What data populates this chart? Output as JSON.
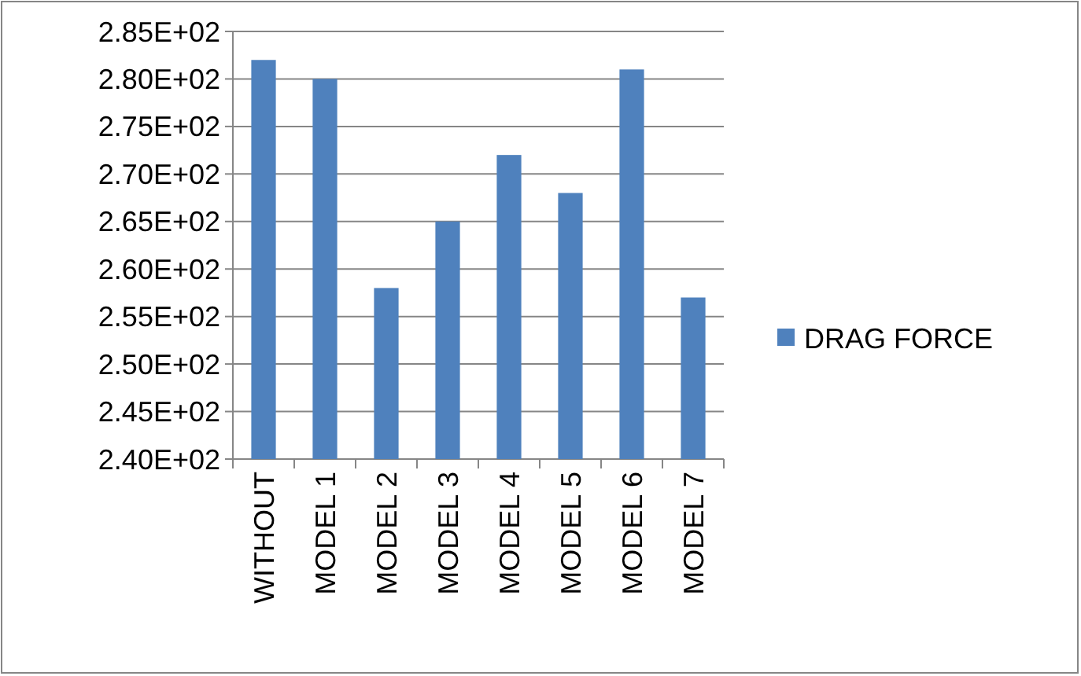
{
  "chart_data": {
    "type": "bar",
    "categories": [
      "WITHOUT",
      "MODEL 1",
      "MODEL 2",
      "MODEL 3",
      "MODEL 4",
      "MODEL 5",
      "MODEL 6",
      "MODEL 7"
    ],
    "series": [
      {
        "name": "DRAG FORCE",
        "color": "#4f81bd",
        "values": [
          282,
          280,
          258,
          265,
          272,
          268,
          281,
          257
        ]
      }
    ],
    "ylim": [
      240,
      285
    ],
    "yticks": [
      {
        "value": 240,
        "label": "2.40E+02"
      },
      {
        "value": 245,
        "label": "2.45E+02"
      },
      {
        "value": 250,
        "label": "2.50E+02"
      },
      {
        "value": 255,
        "label": "2.55E+02"
      },
      {
        "value": 260,
        "label": "2.60E+02"
      },
      {
        "value": 265,
        "label": "2.65E+02"
      },
      {
        "value": 270,
        "label": "2.70E+02"
      },
      {
        "value": 275,
        "label": "2.75E+02"
      },
      {
        "value": 280,
        "label": "2.80E+02"
      },
      {
        "value": 285,
        "label": "2.85E+02"
      }
    ],
    "grid": "y",
    "legend": "right"
  }
}
